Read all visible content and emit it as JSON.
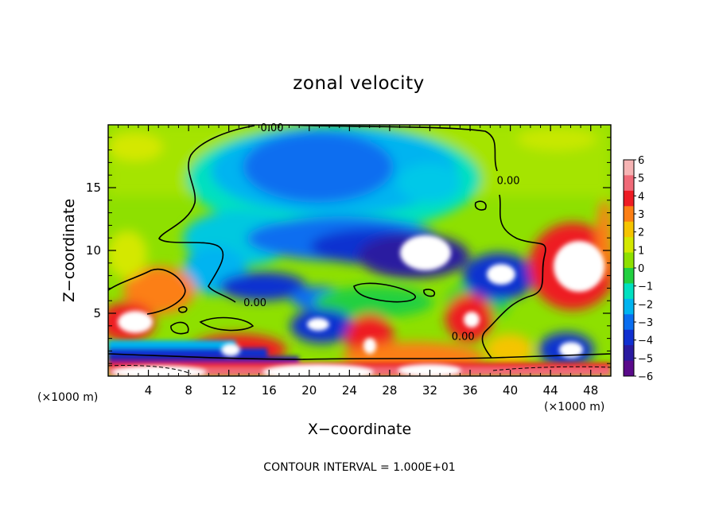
{
  "chart_data": {
    "type": "heatmap",
    "title": "zonal velocity",
    "xlabel": "X−coordinate",
    "ylabel": "Z−coordinate",
    "x_unit": "(×1000 m)",
    "y_unit": "(×1000 m)",
    "xlim": [
      0,
      50
    ],
    "ylim": [
      0,
      20
    ],
    "x_ticks": [
      4,
      8,
      12,
      16,
      20,
      24,
      28,
      32,
      36,
      40,
      44,
      48
    ],
    "x_tick_labels": [
      "4",
      "8",
      "12",
      "16",
      "20",
      "24",
      "28",
      "32",
      "36",
      "40",
      "44",
      "48"
    ],
    "y_ticks": [
      5,
      10,
      15
    ],
    "y_tick_labels": [
      "5",
      "10",
      "15"
    ],
    "colorbar": {
      "levels": [
        6,
        5,
        4,
        3,
        2,
        1,
        0,
        -1,
        -2,
        -3,
        -4,
        -5,
        -6
      ],
      "labels": [
        "6",
        "5",
        "4",
        "3",
        "2",
        "1",
        "0",
        "−1",
        "−2",
        "−3",
        "−4",
        "−5",
        "−6"
      ],
      "colors": [
        "#f6b4b4",
        "#f06a78",
        "#ee1c24",
        "#fc7f14",
        "#f5c400",
        "#d4e800",
        "#8ee000",
        "#22d040",
        "#00e0c0",
        "#00b4f0",
        "#0a6ef0",
        "#1030d0",
        "#2a1aa0",
        "#5a0a8a"
      ]
    },
    "contour_labels": [
      {
        "text": "0.00",
        "x": 14.6,
        "y": 5.9
      },
      {
        "text": "0.00",
        "x": 16.3,
        "y": 19.8
      },
      {
        "text": "0.00",
        "x": 35.3,
        "y": 3.2
      },
      {
        "text": "0.00",
        "x": 39.8,
        "y": 15.6
      }
    ],
    "note": "CONTOUR INTERVAL = 1.000E+01"
  }
}
